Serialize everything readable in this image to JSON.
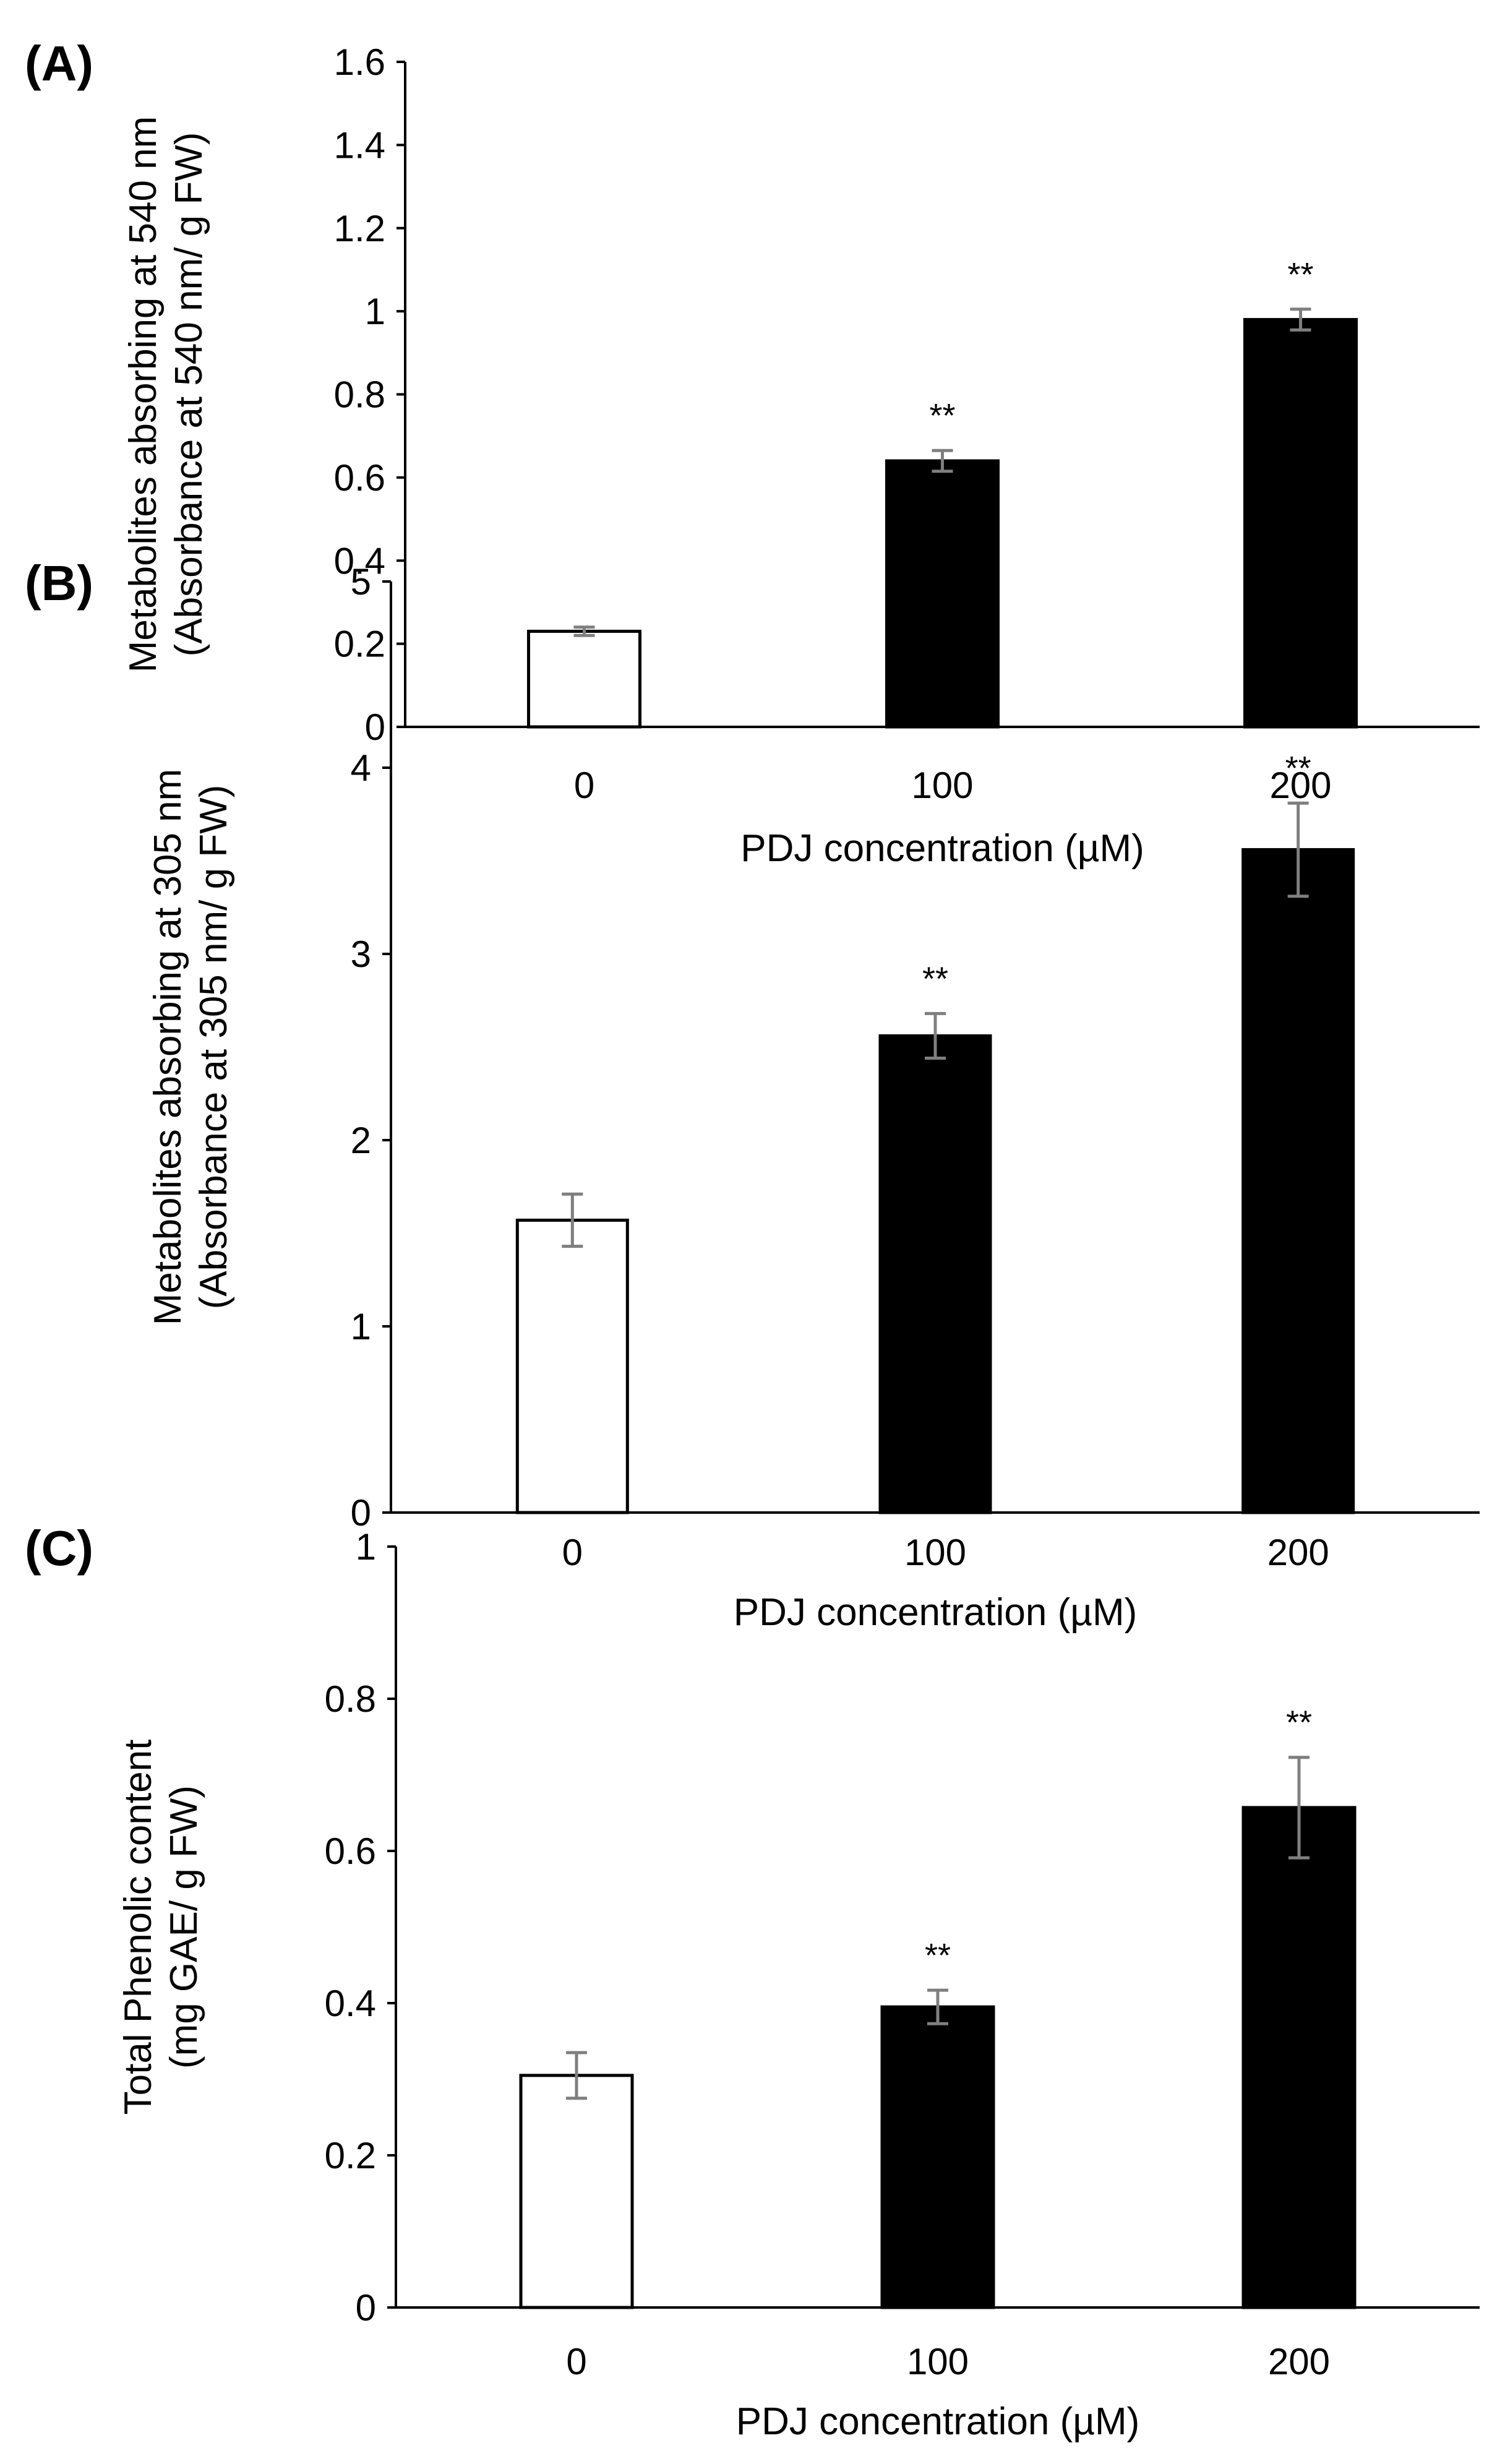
{
  "chart_data": [
    {
      "type": "bar",
      "panel_label": "(A)",
      "categories": [
        "0",
        "100",
        "200"
      ],
      "values": [
        0.23,
        0.64,
        0.98
      ],
      "errors": [
        0.01,
        0.025,
        0.025
      ],
      "bar_colors": [
        "#ffffff",
        "#000000",
        "#000000"
      ],
      "annotations": [
        "",
        "**",
        "**"
      ],
      "ylim": [
        0,
        1.6
      ],
      "yticks": [
        0,
        0.2,
        0.4,
        0.6,
        0.8,
        1,
        1.2,
        1.4,
        1.6
      ],
      "ytick_labels": [
        "0",
        "0.2",
        "0.4",
        "0.6",
        "0.8",
        "1",
        "1.2",
        "1.4",
        "1.6"
      ],
      "ylabel_lines": [
        "Metabolites absorbing at 540 nm",
        "(Absorbance at 540 nm/ g FW)"
      ],
      "xlabel": "PDJ concentration (µM)",
      "grid": false
    },
    {
      "type": "bar",
      "panel_label": "(B)",
      "categories": [
        "0",
        "100",
        "200"
      ],
      "values": [
        1.57,
        2.56,
        3.56
      ],
      "errors": [
        0.14,
        0.12,
        0.25
      ],
      "bar_colors": [
        "#ffffff",
        "#000000",
        "#000000"
      ],
      "annotations": [
        "",
        "**",
        "**"
      ],
      "ylim": [
        0,
        5
      ],
      "yticks": [
        0,
        1,
        2,
        3,
        4,
        5
      ],
      "ytick_labels": [
        "0",
        "1",
        "2",
        "3",
        "4",
        "5"
      ],
      "ylabel_lines": [
        "Metabolites absorbing at 305 nm",
        "(Absorbance at 305 nm/ g FW)"
      ],
      "xlabel": "PDJ concentration (µM)",
      "grid": false
    },
    {
      "type": "bar",
      "panel_label": "(C)",
      "categories": [
        "0",
        "100",
        "200"
      ],
      "values": [
        0.305,
        0.395,
        0.657
      ],
      "errors": [
        0.03,
        0.022,
        0.066
      ],
      "bar_colors": [
        "#ffffff",
        "#000000",
        "#000000"
      ],
      "annotations": [
        "",
        "**",
        "**"
      ],
      "ylim": [
        0,
        1
      ],
      "yticks": [
        0,
        0.2,
        0.4,
        0.6,
        0.8,
        1
      ],
      "ytick_labels": [
        "0",
        "0.2",
        "0.4",
        "0.6",
        "0.8",
        "1"
      ],
      "ylabel_lines": [
        "Total Phenolic content",
        "(mg GAE/ g FW)"
      ],
      "xlabel": "PDJ concentration (µM)",
      "grid": false
    }
  ]
}
